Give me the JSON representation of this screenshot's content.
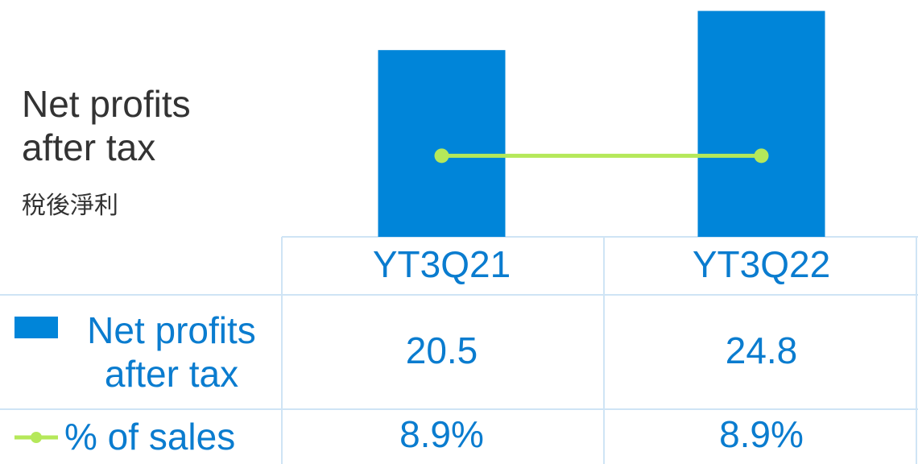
{
  "chart_data": {
    "type": "bar",
    "title": "Net profits after tax",
    "subtitle": "稅後淨利",
    "categories": [
      "YT3Q21",
      "YT3Q22"
    ],
    "series": [
      {
        "name": "Net profits after tax",
        "color": "#0085d9",
        "values": [
          20.5,
          24.8
        ]
      },
      {
        "name": "% of sales",
        "type": "line",
        "color": "#b5e85a",
        "values": [
          8.9,
          8.9
        ],
        "value_labels": [
          "8.9%",
          "8.9%"
        ]
      }
    ],
    "ylim": [
      0,
      26
    ],
    "grid": false
  }
}
